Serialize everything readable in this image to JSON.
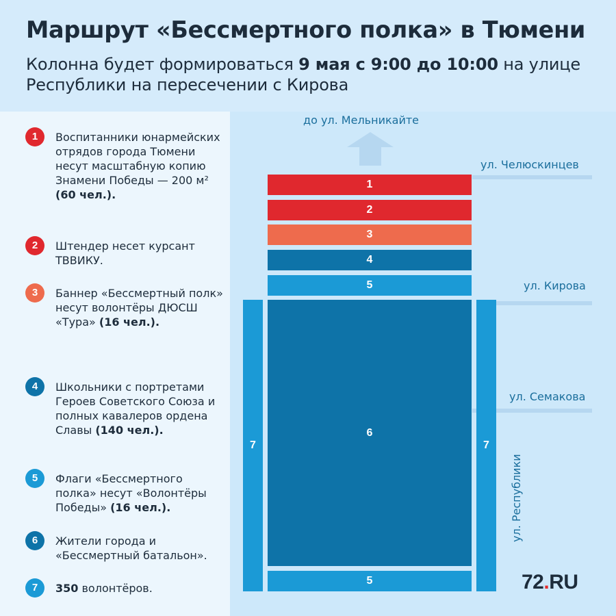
{
  "header": {
    "title": "Маршрут «Бессмертного полка» в Тюмени",
    "subtitle_pre": "Колонна будет формироваться ",
    "subtitle_bold": "9 мая с 9:00 до 10:00",
    "subtitle_post": " на улице Республики на пересечении с Кирова"
  },
  "legend": [
    {
      "num": "1",
      "color": "#e0282e",
      "text": "Воспитанники юнармейских отрядов города Тюмени несут масштабную копию Знамени Победы — 200 м² ",
      "bold": "(60 чел.)."
    },
    {
      "num": "2",
      "color": "#e0282e",
      "text": "Штендер несет курсант ТВВИКУ.",
      "bold": ""
    },
    {
      "num": "3",
      "color": "#ee6b4d",
      "text": "Баннер «Бессмертный полк» несут волонтёры ДЮСШ «Тура» ",
      "bold": "(16 чел.)."
    },
    {
      "num": "4",
      "color": "#0e73a8",
      "text": "Школьники с портретами Героев Советского Союза и полных кавалеров ордена Славы ",
      "bold": "(140 чел.)."
    },
    {
      "num": "5",
      "color": "#1b9ad6",
      "text": "Флаги «Бессмертного полка» несут «Волонтёры Победы» ",
      "bold": "(16 чел.)."
    },
    {
      "num": "6",
      "color": "#0e73a8",
      "text": "Жители города и «Бессмертный батальон».",
      "bold": ""
    },
    {
      "num": "7",
      "color": "#1b9ad6",
      "text": "волонтёров.",
      "bold": "350",
      "bold_first": true
    }
  ],
  "map": {
    "destination": "до ул. Мельникайте",
    "streets": {
      "chelyuskintsev": "ул. Челюскинцев",
      "kirova": "ул. Кирова",
      "semakova": "ул. Семакова",
      "respubliki": "ул. Республики"
    },
    "blocks": {
      "b1": "1",
      "b2": "2",
      "b3": "3",
      "b4": "4",
      "b5_top": "5",
      "b6": "6",
      "b5_bottom": "5",
      "b7_left": "7",
      "b7_right": "7"
    }
  },
  "logo": {
    "main": "72",
    "dot": ".",
    "suffix": "RU"
  },
  "colors": {
    "red": "#e0282e",
    "orange": "#ee6b4d",
    "dark_blue": "#0e73a8",
    "light_blue": "#1b9ad6",
    "background": "#cde8fa"
  }
}
